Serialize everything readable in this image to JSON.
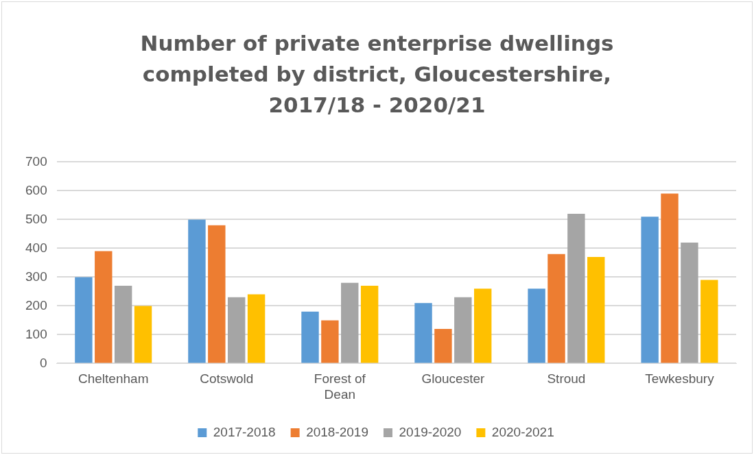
{
  "chart_data": {
    "type": "bar",
    "title": "Number of private enterprise dwellings completed by district, Gloucestershire, 2017/18 - 2020/21",
    "categories": [
      "Cheltenham",
      "Cotswold",
      "Forest of Dean",
      "Gloucester",
      "Stroud",
      "Tewkesbury"
    ],
    "series": [
      {
        "name": "2017-2018",
        "color": "#5b9bd5",
        "values": [
          300,
          500,
          180,
          210,
          260,
          510
        ]
      },
      {
        "name": "2018-2019",
        "color": "#ed7d31",
        "values": [
          390,
          480,
          150,
          120,
          380,
          590
        ]
      },
      {
        "name": "2019-2020",
        "color": "#a5a5a5",
        "values": [
          270,
          230,
          280,
          230,
          520,
          420
        ]
      },
      {
        "name": "2020-2021",
        "color": "#ffc000",
        "values": [
          200,
          240,
          270,
          260,
          370,
          290
        ]
      }
    ],
    "ylim": [
      0,
      700
    ],
    "yticks": [
      0,
      100,
      200,
      300,
      400,
      500,
      600,
      700
    ],
    "grid": "y",
    "legend": "bottom"
  }
}
